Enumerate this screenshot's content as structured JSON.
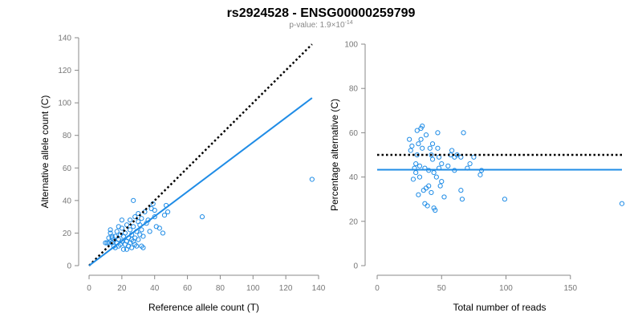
{
  "title": "rs2924528 - ENSG00000259799",
  "subtitle": {
    "prefix": "p-value: 1.9×10",
    "exponent": "-14"
  },
  "colors": {
    "points": "#1f8ce6",
    "fit_line": "#1f8ce6",
    "reference_line": "#000000",
    "axis": "#888888"
  },
  "chart_data": [
    {
      "type": "scatter",
      "name": "allele-counts",
      "xlabel": "Reference allele count (T)",
      "ylabel": "Alternative allele count (C)",
      "xlim": [
        0,
        140
      ],
      "ylim": [
        0,
        140
      ],
      "xticks": [
        0,
        20,
        40,
        60,
        80,
        100,
        120,
        140
      ],
      "yticks": [
        0,
        20,
        40,
        60,
        80,
        100,
        120,
        140
      ],
      "points": [
        [
          10,
          14
        ],
        [
          11,
          14
        ],
        [
          12,
          14
        ],
        [
          12,
          17
        ],
        [
          13,
          20
        ],
        [
          13,
          22
        ],
        [
          14,
          17
        ],
        [
          14,
          14
        ],
        [
          15,
          12
        ],
        [
          15,
          16
        ],
        [
          16,
          11
        ],
        [
          16,
          18
        ],
        [
          17,
          14
        ],
        [
          17,
          21
        ],
        [
          18,
          12
        ],
        [
          18,
          16
        ],
        [
          19,
          13
        ],
        [
          19,
          19
        ],
        [
          20,
          15
        ],
        [
          20,
          23
        ],
        [
          20,
          28
        ],
        [
          21,
          10
        ],
        [
          21,
          18
        ],
        [
          22,
          13
        ],
        [
          22,
          20
        ],
        [
          23,
          15
        ],
        [
          23,
          25
        ],
        [
          24,
          12
        ],
        [
          24,
          17
        ],
        [
          25,
          14
        ],
        [
          25,
          22
        ],
        [
          25,
          28
        ],
        [
          26,
          11
        ],
        [
          26,
          19
        ],
        [
          27,
          15
        ],
        [
          27,
          24
        ],
        [
          27,
          40
        ],
        [
          28,
          13
        ],
        [
          28,
          17
        ],
        [
          28,
          30
        ],
        [
          29,
          21
        ],
        [
          30,
          16
        ],
        [
          30,
          27
        ],
        [
          30,
          32
        ],
        [
          31,
          19
        ],
        [
          31,
          25
        ],
        [
          32,
          12
        ],
        [
          32,
          22
        ],
        [
          32,
          29
        ],
        [
          33,
          11
        ],
        [
          33,
          18
        ],
        [
          34,
          33
        ],
        [
          35,
          26
        ],
        [
          36,
          28
        ],
        [
          37,
          21
        ],
        [
          38,
          35
        ],
        [
          39,
          38
        ],
        [
          40,
          30
        ],
        [
          40,
          34
        ],
        [
          41,
          24
        ],
        [
          43,
          23
        ],
        [
          45,
          20
        ],
        [
          46,
          31
        ],
        [
          47,
          37
        ],
        [
          48,
          33
        ],
        [
          69,
          30
        ],
        [
          136,
          53
        ],
        [
          14,
          18
        ],
        [
          18,
          24
        ],
        [
          23,
          10
        ],
        [
          26,
          16
        ],
        [
          29,
          12
        ]
      ],
      "reference_line": {
        "style": "dotted",
        "from": [
          0,
          0
        ],
        "to": [
          136,
          136
        ]
      },
      "fit_line": {
        "from": [
          0,
          0
        ],
        "to": [
          136,
          103
        ]
      }
    },
    {
      "type": "scatter",
      "name": "percentage-alternative",
      "xlabel": "Total number of reads",
      "ylabel": "Percentage alternative (C)",
      "xlim": [
        0,
        190
      ],
      "ylim": [
        0,
        100
      ],
      "xticks": [
        0,
        50,
        100,
        150
      ],
      "yticks": [
        0,
        20,
        40,
        60,
        80,
        100
      ],
      "points": [
        [
          25,
          57
        ],
        [
          26,
          52
        ],
        [
          27,
          54
        ],
        [
          28,
          39
        ],
        [
          29,
          44
        ],
        [
          30,
          42
        ],
        [
          30,
          46
        ],
        [
          31,
          50
        ],
        [
          31,
          61
        ],
        [
          32,
          32
        ],
        [
          32,
          55
        ],
        [
          33,
          40
        ],
        [
          33,
          45
        ],
        [
          34,
          57
        ],
        [
          34,
          62
        ],
        [
          35,
          53
        ],
        [
          35,
          63
        ],
        [
          36,
          34
        ],
        [
          37,
          28
        ],
        [
          37,
          44
        ],
        [
          38,
          35
        ],
        [
          38,
          59
        ],
        [
          39,
          27
        ],
        [
          40,
          36
        ],
        [
          40,
          43
        ],
        [
          41,
          53
        ],
        [
          42,
          33
        ],
        [
          42,
          50
        ],
        [
          43,
          48
        ],
        [
          43,
          55
        ],
        [
          44,
          42
        ],
        [
          44,
          26
        ],
        [
          45,
          25
        ],
        [
          46,
          40
        ],
        [
          47,
          53
        ],
        [
          47,
          60
        ],
        [
          48,
          44
        ],
        [
          48,
          49
        ],
        [
          49,
          36
        ],
        [
          50,
          38
        ],
        [
          50,
          46
        ],
        [
          52,
          31
        ],
        [
          55,
          45
        ],
        [
          57,
          50
        ],
        [
          58,
          52
        ],
        [
          60,
          43
        ],
        [
          60,
          49
        ],
        [
          62,
          50
        ],
        [
          65,
          49
        ],
        [
          65,
          34
        ],
        [
          66,
          30
        ],
        [
          67,
          60
        ],
        [
          70,
          44
        ],
        [
          72,
          46
        ],
        [
          75,
          49
        ],
        [
          80,
          41
        ],
        [
          81,
          43
        ],
        [
          99,
          30
        ],
        [
          190,
          28
        ]
      ],
      "reference_line": {
        "style": "dotted",
        "y": 50
      },
      "fit_line": {
        "y": 43.3
      }
    }
  ]
}
